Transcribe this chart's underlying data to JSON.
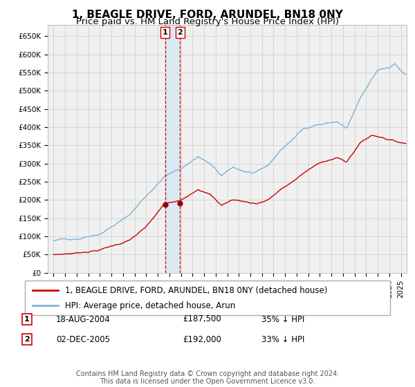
{
  "title": "1, BEAGLE DRIVE, FORD, ARUNDEL, BN18 0NY",
  "subtitle": "Price paid vs. HM Land Registry's House Price Index (HPI)",
  "yticks": [
    0,
    50000,
    100000,
    150000,
    200000,
    250000,
    300000,
    350000,
    400000,
    450000,
    500000,
    550000,
    600000,
    650000
  ],
  "xlim_start": 1994.5,
  "xlim_end": 2025.5,
  "ylim": [
    0,
    680000
  ],
  "hpi_color": "#7ab3d4",
  "price_color": "#cc0000",
  "marker_color": "#990000",
  "dashed_color": "#cc0000",
  "shade_color": "#d6e8f5",
  "grid_color": "#cccccc",
  "bg_color": "#f0f0f0",
  "legend_entries": [
    "1, BEAGLE DRIVE, FORD, ARUNDEL, BN18 0NY (detached house)",
    "HPI: Average price, detached house, Arun"
  ],
  "transactions": [
    {
      "num": 1,
      "date": "18-AUG-2004",
      "price": "£187,500",
      "hpi_diff": "35% ↓ HPI",
      "year": 2004.63
    },
    {
      "num": 2,
      "date": "02-DEC-2005",
      "price": "£192,000",
      "hpi_diff": "33% ↓ HPI",
      "year": 2005.92
    }
  ],
  "transaction_prices": [
    187500,
    192000
  ],
  "transaction_years": [
    2004.63,
    2005.92
  ],
  "footer": "Contains HM Land Registry data © Crown copyright and database right 2024.\nThis data is licensed under the Open Government Licence v3.0.",
  "title_fontsize": 11,
  "subtitle_fontsize": 9.5,
  "tick_fontsize": 7.5,
  "legend_fontsize": 8.5,
  "footer_fontsize": 7
}
